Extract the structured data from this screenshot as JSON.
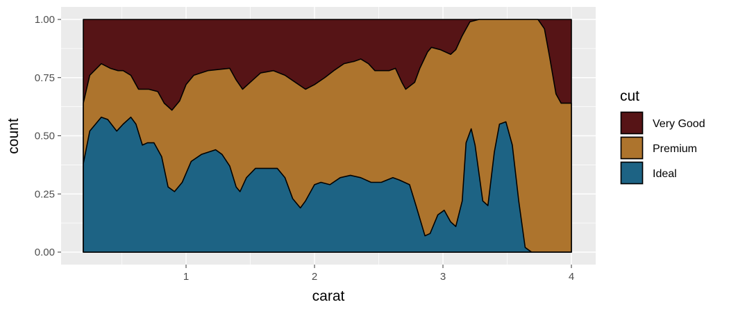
{
  "chart_data": {
    "type": "area",
    "stacking": "fill",
    "xlabel": "carat",
    "ylabel": "count",
    "xlim": [
      0.2,
      4.0
    ],
    "ylim": [
      0,
      1
    ],
    "x_ticks": [
      1,
      2,
      3,
      4
    ],
    "x_tick_labels": [
      "1",
      "2",
      "3",
      "4"
    ],
    "y_ticks": [
      0,
      0.25,
      0.5,
      0.75,
      1
    ],
    "y_tick_labels": [
      "0.00",
      "0.25",
      "0.50",
      "0.75",
      "1.00"
    ],
    "grid": true,
    "legend": {
      "title": "cut",
      "position": "right",
      "entries": [
        "Very Good",
        "Premium",
        "Ideal"
      ]
    },
    "series_note_values_are": "cumulative upper boundary of each stacked band",
    "series": [
      {
        "name": "Very Good",
        "color": "#561416",
        "points": [
          [
            0.2,
            1.0
          ],
          [
            4.0,
            1.0
          ]
        ]
      },
      {
        "name": "Premium",
        "color": "#AD742D",
        "points": [
          [
            0.2,
            0.64
          ],
          [
            0.25,
            0.76
          ],
          [
            0.34,
            0.81
          ],
          [
            0.41,
            0.79
          ],
          [
            0.47,
            0.78
          ],
          [
            0.51,
            0.78
          ],
          [
            0.57,
            0.76
          ],
          [
            0.63,
            0.7
          ],
          [
            0.71,
            0.7
          ],
          [
            0.78,
            0.69
          ],
          [
            0.83,
            0.64
          ],
          [
            0.89,
            0.61
          ],
          [
            0.95,
            0.65
          ],
          [
            1.0,
            0.72
          ],
          [
            1.06,
            0.76
          ],
          [
            1.17,
            0.78
          ],
          [
            1.34,
            0.79
          ],
          [
            1.39,
            0.74
          ],
          [
            1.44,
            0.7
          ],
          [
            1.5,
            0.73
          ],
          [
            1.58,
            0.77
          ],
          [
            1.68,
            0.78
          ],
          [
            1.77,
            0.76
          ],
          [
            1.85,
            0.73
          ],
          [
            1.93,
            0.7
          ],
          [
            2.0,
            0.72
          ],
          [
            2.08,
            0.75
          ],
          [
            2.15,
            0.78
          ],
          [
            2.23,
            0.81
          ],
          [
            2.31,
            0.82
          ],
          [
            2.36,
            0.83
          ],
          [
            2.42,
            0.81
          ],
          [
            2.47,
            0.78
          ],
          [
            2.52,
            0.78
          ],
          [
            2.58,
            0.78
          ],
          [
            2.63,
            0.79
          ],
          [
            2.68,
            0.73
          ],
          [
            2.71,
            0.7
          ],
          [
            2.78,
            0.73
          ],
          [
            2.82,
            0.79
          ],
          [
            2.88,
            0.86
          ],
          [
            2.91,
            0.88
          ],
          [
            2.98,
            0.87
          ],
          [
            3.06,
            0.85
          ],
          [
            3.1,
            0.87
          ],
          [
            3.15,
            0.93
          ],
          [
            3.21,
            0.99
          ],
          [
            3.28,
            1.0
          ],
          [
            3.74,
            1.0
          ],
          [
            3.79,
            0.96
          ],
          [
            3.83,
            0.84
          ],
          [
            3.88,
            0.68
          ],
          [
            3.92,
            0.64
          ],
          [
            3.96,
            0.64
          ],
          [
            4.0,
            0.64
          ]
        ]
      },
      {
        "name": "Ideal",
        "color": "#1D6384",
        "points": [
          [
            0.2,
            0.38
          ],
          [
            0.25,
            0.52
          ],
          [
            0.34,
            0.58
          ],
          [
            0.39,
            0.57
          ],
          [
            0.46,
            0.52
          ],
          [
            0.51,
            0.55
          ],
          [
            0.57,
            0.58
          ],
          [
            0.61,
            0.55
          ],
          [
            0.66,
            0.46
          ],
          [
            0.7,
            0.47
          ],
          [
            0.75,
            0.47
          ],
          [
            0.81,
            0.41
          ],
          [
            0.86,
            0.28
          ],
          [
            0.91,
            0.26
          ],
          [
            0.97,
            0.3
          ],
          [
            1.04,
            0.39
          ],
          [
            1.12,
            0.42
          ],
          [
            1.23,
            0.44
          ],
          [
            1.28,
            0.42
          ],
          [
            1.34,
            0.37
          ],
          [
            1.39,
            0.28
          ],
          [
            1.42,
            0.26
          ],
          [
            1.47,
            0.32
          ],
          [
            1.54,
            0.36
          ],
          [
            1.63,
            0.36
          ],
          [
            1.71,
            0.36
          ],
          [
            1.77,
            0.32
          ],
          [
            1.83,
            0.23
          ],
          [
            1.89,
            0.19
          ],
          [
            1.93,
            0.22
          ],
          [
            2.0,
            0.29
          ],
          [
            2.05,
            0.3
          ],
          [
            2.12,
            0.29
          ],
          [
            2.2,
            0.32
          ],
          [
            2.28,
            0.33
          ],
          [
            2.36,
            0.32
          ],
          [
            2.44,
            0.3
          ],
          [
            2.52,
            0.3
          ],
          [
            2.61,
            0.32
          ],
          [
            2.66,
            0.31
          ],
          [
            2.74,
            0.29
          ],
          [
            2.79,
            0.2
          ],
          [
            2.86,
            0.07
          ],
          [
            2.9,
            0.08
          ],
          [
            2.96,
            0.16
          ],
          [
            3.01,
            0.18
          ],
          [
            3.06,
            0.13
          ],
          [
            3.1,
            0.11
          ],
          [
            3.15,
            0.22
          ],
          [
            3.18,
            0.47
          ],
          [
            3.22,
            0.53
          ],
          [
            3.25,
            0.46
          ],
          [
            3.31,
            0.22
          ],
          [
            3.35,
            0.2
          ],
          [
            3.4,
            0.43
          ],
          [
            3.44,
            0.55
          ],
          [
            3.49,
            0.56
          ],
          [
            3.54,
            0.46
          ],
          [
            3.59,
            0.22
          ],
          [
            3.64,
            0.02
          ],
          [
            3.69,
            0.0
          ],
          [
            4.0,
            0.0
          ]
        ]
      }
    ]
  }
}
